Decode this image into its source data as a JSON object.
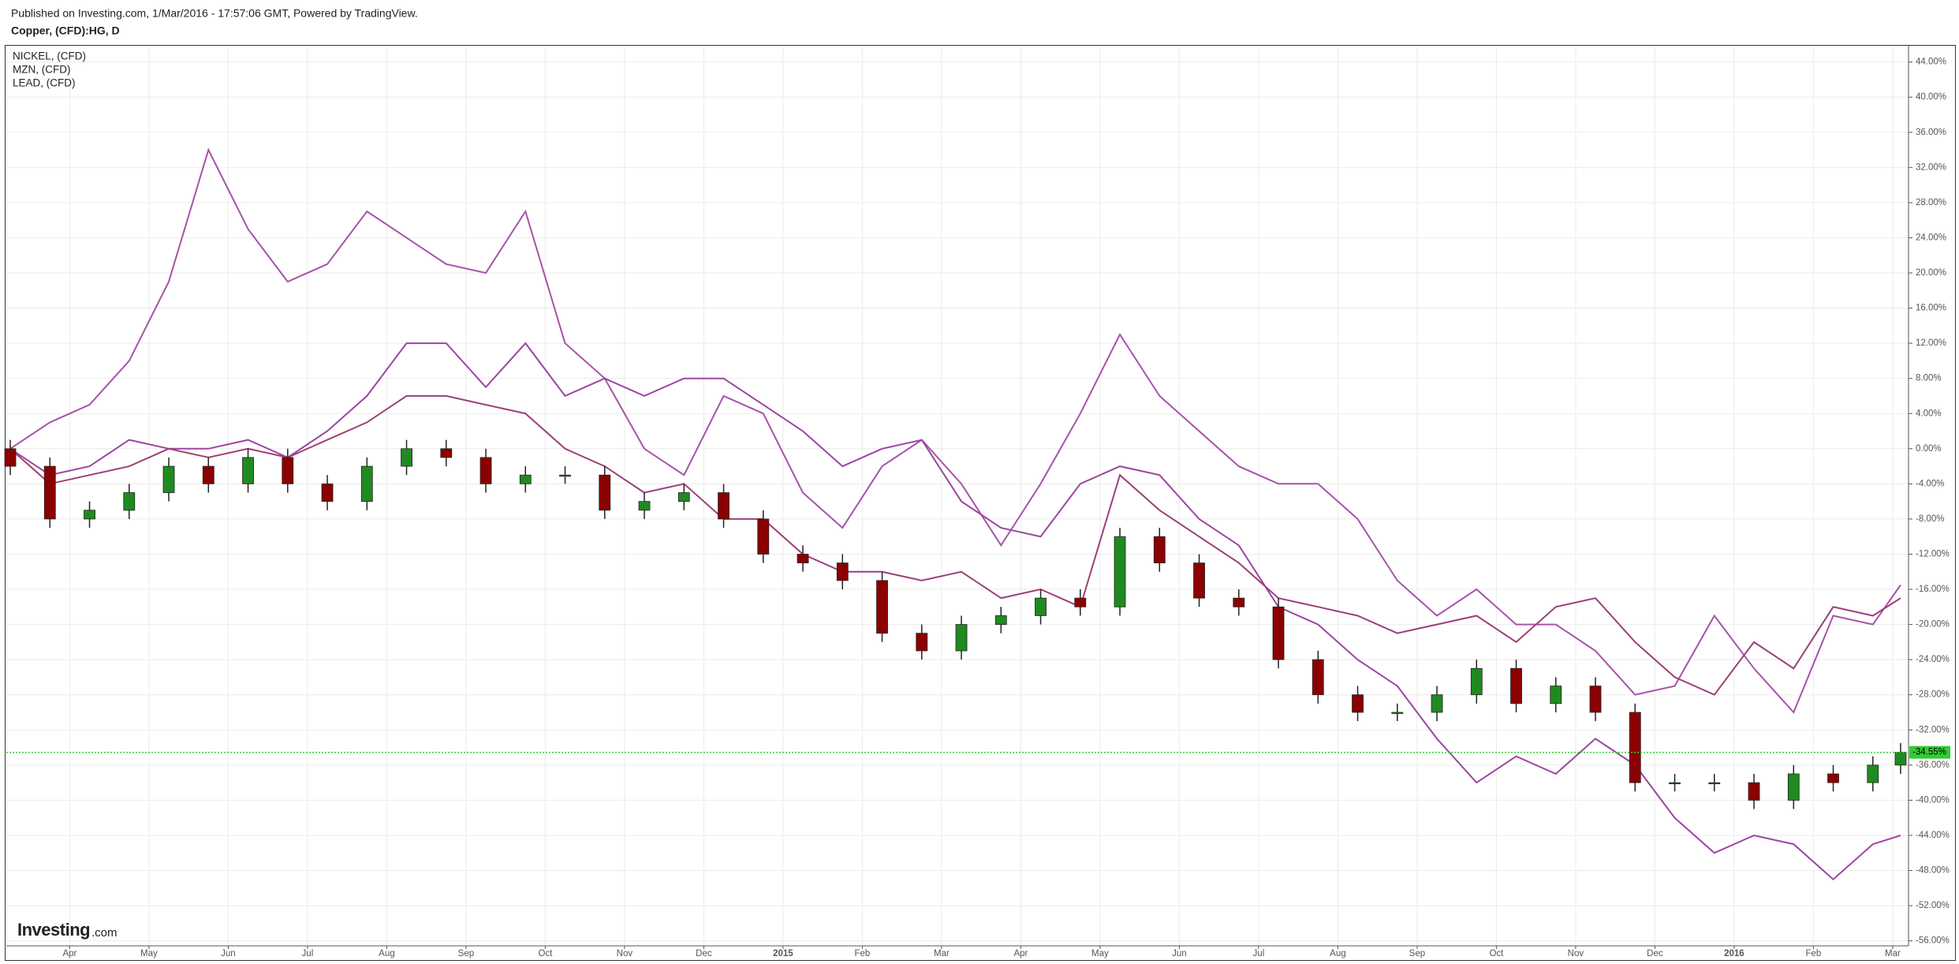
{
  "chart_data": {
    "type": "line",
    "title": "Published on Investing.com, 1/Mar/2016 - 17:57:06 GMT, Powered by TradingView.",
    "subtitle": "Copper, (CFD):HG, D",
    "logo": {
      "brand": "Investing",
      "suffix": ".com"
    },
    "x": [
      0.25,
      0.75,
      1.25,
      1.75,
      2.25,
      2.75,
      3.25,
      3.75,
      4.25,
      4.75,
      5.25,
      5.75,
      6.25,
      6.75,
      7.25,
      7.75,
      8.25,
      8.75,
      9.25,
      9.75,
      10.25,
      10.75,
      11.25,
      11.75,
      12.25,
      12.75,
      13.25,
      13.75,
      14.25,
      14.75,
      15.25,
      15.75,
      16.25,
      16.75,
      17.25,
      17.75,
      18.25,
      18.75,
      19.25,
      19.75,
      20.25,
      20.75,
      21.25,
      21.75,
      22.25,
      22.75,
      23.25,
      23.75,
      24.1
    ],
    "xlim": [
      0.2,
      24.2
    ],
    "xticks": [
      {
        "value": 1,
        "label": "Apr"
      },
      {
        "value": 2,
        "label": "May"
      },
      {
        "value": 3,
        "label": "Jun"
      },
      {
        "value": 4,
        "label": "Jul"
      },
      {
        "value": 5,
        "label": "Aug"
      },
      {
        "value": 6,
        "label": "Sep"
      },
      {
        "value": 7,
        "label": "Oct"
      },
      {
        "value": 8,
        "label": "Nov"
      },
      {
        "value": 9,
        "label": "Dec"
      },
      {
        "value": 10,
        "label": "2015"
      },
      {
        "value": 11,
        "label": "Feb"
      },
      {
        "value": 12,
        "label": "Mar"
      },
      {
        "value": 13,
        "label": "Apr"
      },
      {
        "value": 14,
        "label": "May"
      },
      {
        "value": 15,
        "label": "Jun"
      },
      {
        "value": 16,
        "label": "Jul"
      },
      {
        "value": 17,
        "label": "Aug"
      },
      {
        "value": 18,
        "label": "Sep"
      },
      {
        "value": 19,
        "label": "Oct"
      },
      {
        "value": 20,
        "label": "Nov"
      },
      {
        "value": 21,
        "label": "Dec"
      },
      {
        "value": 22,
        "label": "2016"
      },
      {
        "value": 23,
        "label": "Feb"
      },
      {
        "value": 24,
        "label": "Mar"
      }
    ],
    "ylim": [
      -56.57,
      45.85
    ],
    "yticks": [
      {
        "value": 44,
        "label": "44.00%"
      },
      {
        "value": 40,
        "label": "40.00%"
      },
      {
        "value": 36,
        "label": "36.00%"
      },
      {
        "value": 32,
        "label": "32.00%"
      },
      {
        "value": 28,
        "label": "28.00%"
      },
      {
        "value": 24,
        "label": "24.00%"
      },
      {
        "value": 20,
        "label": "20.00%"
      },
      {
        "value": 16,
        "label": "16.00%"
      },
      {
        "value": 12,
        "label": "12.00%"
      },
      {
        "value": 8,
        "label": "8.00%"
      },
      {
        "value": 4,
        "label": "4.00%"
      },
      {
        "value": 0,
        "label": "0.00%"
      },
      {
        "value": -4,
        "label": "-4.00%"
      },
      {
        "value": -8,
        "label": "-8.00%"
      },
      {
        "value": -12,
        "label": "-12.00%"
      },
      {
        "value": -16,
        "label": "-16.00%"
      },
      {
        "value": -20,
        "label": "-20.00%"
      },
      {
        "value": -24,
        "label": "-24.00%"
      },
      {
        "value": -28,
        "label": "-28.00%"
      },
      {
        "value": -32,
        "label": "-32.00%"
      },
      {
        "value": -36,
        "label": "-36.00%"
      },
      {
        "value": -40,
        "label": "-40.00%"
      },
      {
        "value": -44,
        "label": "-44.00%"
      },
      {
        "value": -48,
        "label": "-48.00%"
      },
      {
        "value": -52,
        "label": "-52.00%"
      },
      {
        "value": -56,
        "label": "-56.00%"
      }
    ],
    "grid": true,
    "legend": "top-left",
    "series": [
      {
        "name": "NICKEL,  (CFD)",
        "color": "#a653a8",
        "values": [
          0,
          3,
          5,
          10,
          19,
          34,
          25,
          19,
          21,
          27,
          24,
          21,
          20,
          27,
          12,
          8,
          0,
          -3,
          6,
          4,
          -5,
          -9,
          -2,
          1,
          -4,
          -11,
          -4,
          4,
          13,
          6,
          2,
          -2,
          -4,
          -4,
          -8,
          -15,
          -19,
          -16,
          -20,
          -20,
          -23,
          -28,
          -27,
          -19,
          -25,
          -30,
          -19,
          -20,
          -15.5
        ]
      },
      {
        "name": "MZN,  (CFD)",
        "color": "#9c45a0",
        "values": [
          0,
          -3,
          -2,
          1,
          0,
          0,
          1,
          -1,
          2,
          6,
          12,
          12,
          7,
          12,
          6,
          8,
          6,
          8,
          8,
          5,
          2,
          -2,
          0,
          1,
          -6,
          -9,
          -10,
          -4,
          -2,
          -3,
          -8,
          -11,
          -18,
          -20,
          -24,
          -27,
          -33,
          -38,
          -35,
          -37,
          -33,
          -36,
          -42,
          -46,
          -44,
          -45,
          -49,
          -45,
          -44
        ]
      },
      {
        "name": "LEAD,  (CFD)",
        "color": "#9e3f78",
        "values": [
          0,
          -4,
          -3,
          -2,
          0,
          -1,
          0,
          -1,
          1,
          3,
          6,
          6,
          5,
          4,
          0,
          -2,
          -5,
          -4,
          -8,
          -8,
          -12,
          -14,
          -14,
          -15,
          -14,
          -17,
          -16,
          -18,
          -3,
          -7,
          -10,
          -13,
          -17,
          -18,
          -19,
          -21,
          -20,
          -19,
          -22,
          -18,
          -17,
          -22,
          -26,
          -28,
          -22,
          -25,
          -18,
          -19,
          -17
        ]
      }
    ],
    "candles": {
      "up_color": "#1f8a1f",
      "down_color": "#8b0000",
      "open": [
        0,
        -2,
        -8,
        -7,
        -5,
        -2,
        -4,
        -1,
        -4,
        -6,
        -2,
        0,
        -1,
        -4,
        -3,
        -3,
        -7,
        -6,
        -5,
        -8,
        -12,
        -13,
        -15,
        -21,
        -23,
        -20,
        -19,
        -17,
        -18,
        -10,
        -13,
        -17,
        -18,
        -24,
        -28,
        -30,
        -30,
        -28,
        -25,
        -29,
        -27,
        -30,
        -38,
        -38,
        -38,
        -40,
        -37,
        -38,
        -36
      ],
      "high": [
        1,
        -1,
        -6,
        -4,
        -1,
        -1,
        0,
        0,
        -3,
        -1,
        1,
        1,
        0,
        -2,
        -2,
        -2,
        -5,
        -4,
        -4,
        -7,
        -11,
        -12,
        -14,
        -20,
        -19,
        -18,
        -16,
        -16,
        -9,
        -9,
        -12,
        -16,
        -17,
        -23,
        -27,
        -29,
        -27,
        -24,
        -24,
        -26,
        -26,
        -29,
        -37,
        -37,
        -37,
        -36,
        -36,
        -35,
        -33.5
      ],
      "low": [
        -3,
        -9,
        -9,
        -8,
        -6,
        -5,
        -5,
        -5,
        -7,
        -7,
        -3,
        -2,
        -5,
        -5,
        -4,
        -8,
        -8,
        -7,
        -9,
        -13,
        -14,
        -16,
        -22,
        -24,
        -24,
        -21,
        -20,
        -19,
        -19,
        -14,
        -18,
        -19,
        -25,
        -29,
        -31,
        -31,
        -31,
        -29,
        -30,
        -30,
        -31,
        -39,
        -39,
        -39,
        -41,
        -41,
        -39,
        -39,
        -37
      ],
      "close": [
        -2,
        -8,
        -7,
        -5,
        -2,
        -4,
        -1,
        -4,
        -6,
        -2,
        0,
        -1,
        -4,
        -3,
        -3,
        -7,
        -6,
        -5,
        -8,
        -12,
        -13,
        -15,
        -21,
        -23,
        -20,
        -19,
        -17,
        -18,
        -10,
        -13,
        -17,
        -18,
        -24,
        -28,
        -30,
        -30,
        -28,
        -25,
        -29,
        -27,
        -30,
        -38,
        -38,
        -38,
        -40,
        -37,
        -38,
        -36,
        -34.55
      ]
    },
    "marker": {
      "value": -34.55,
      "label": "-34.55%",
      "color": "#33cc33"
    }
  }
}
